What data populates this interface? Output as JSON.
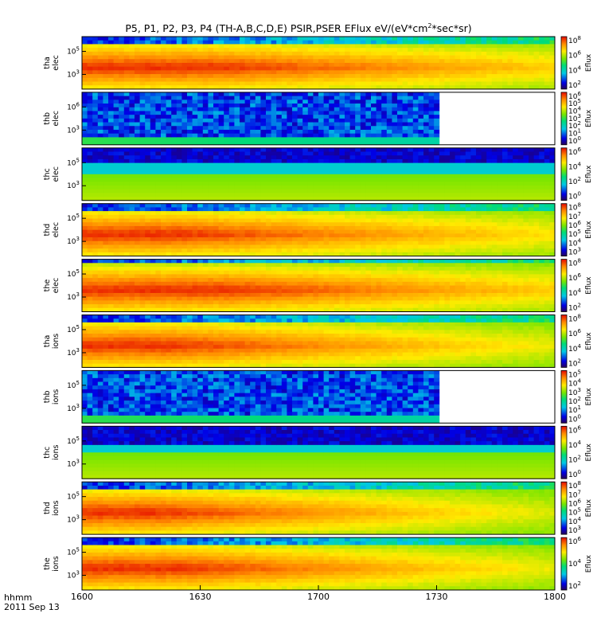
{
  "title": "P5, P1, P2, P3, P4 (TH-A,B,C,D,E) PSIR,PSER EFlux eV/(eV*cm",
  "title_sup": "2",
  "title_tail": "*sec*sr)",
  "bottom_labels": [
    "hhmm",
    "2011 Sep 13"
  ],
  "chart_data": {
    "type": "heatmap",
    "title": "P5, P1, P2, P3, P4 (TH-A,B,C,D,E) PSIR,PSER EFlux eV/(eV*cm^2*sec*sr)",
    "x_ticks": [
      "1600",
      "1630",
      "1700",
      "1730",
      "1800"
    ],
    "x_range": [
      "1600",
      "1800"
    ],
    "colorbar_label": "Eflux",
    "panels": [
      {
        "label": "tha elec",
        "yticks": [
          "10^5",
          "10^3"
        ],
        "cticks": [
          "10^8",
          "10^6",
          "10^4",
          "10^2"
        ],
        "peak_end": 0.28,
        "fade_end": 1.0,
        "top_band": 0.12,
        "gap_from": null
      },
      {
        "label": "thb elec",
        "yticks": [
          "10^6",
          "10^3"
        ],
        "cticks": [
          "10^6",
          "10^5",
          "10^4",
          "10^3",
          "10^2",
          "10^1",
          "10^0"
        ],
        "peak_end": 0.0,
        "fade_end": 0.0,
        "top_band": 0.85,
        "gap_from": 0.75
      },
      {
        "label": "thc elec",
        "yticks": [
          "10^5",
          "10^3"
        ],
        "cticks": [
          "10^6",
          "10^4",
          "10^2",
          "10^0"
        ],
        "peak_end": 0.0,
        "fade_end": 0.0,
        "top_band": 0.25,
        "gap_from": null
      },
      {
        "label": "thd elec",
        "yticks": [
          "10^5",
          "10^3"
        ],
        "cticks": [
          "10^8",
          "10^7",
          "10^6",
          "10^5",
          "10^4",
          "10^3"
        ],
        "peak_end": 0.2,
        "fade_end": 0.9,
        "top_band": 0.1,
        "gap_from": null
      },
      {
        "label": "the elec",
        "yticks": [
          "10^5",
          "10^3"
        ],
        "cticks": [
          "10^8",
          "10^6",
          "10^4",
          "10^2"
        ],
        "peak_end": 0.3,
        "fade_end": 1.0,
        "top_band": 0.06,
        "gap_from": null
      },
      {
        "label": "tha ions",
        "yticks": [
          "10^5",
          "10^3"
        ],
        "cticks": [
          "10^8",
          "10^6",
          "10^4",
          "10^2"
        ],
        "peak_end": 0.18,
        "fade_end": 0.8,
        "top_band": 0.12,
        "gap_from": null
      },
      {
        "label": "thb ions",
        "yticks": [
          "10^5",
          "10^3"
        ],
        "cticks": [
          "10^5",
          "10^4",
          "10^3",
          "10^2",
          "10^1",
          "10^0"
        ],
        "peak_end": 0.0,
        "fade_end": 0.0,
        "top_band": 0.8,
        "gap_from": 0.75
      },
      {
        "label": "thc ions",
        "yticks": [
          "10^5",
          "10^3"
        ],
        "cticks": [
          "10^6",
          "10^4",
          "10^2",
          "10^0"
        ],
        "peak_end": 0.0,
        "fade_end": 0.0,
        "top_band": 0.3,
        "gap_from": null
      },
      {
        "label": "thd ions",
        "yticks": [
          "10^5",
          "10^3"
        ],
        "cticks": [
          "10^8",
          "10^7",
          "10^6",
          "10^5",
          "10^4",
          "10^3"
        ],
        "peak_end": 0.15,
        "fade_end": 0.75,
        "top_band": 0.1,
        "gap_from": null
      },
      {
        "label": "the ions",
        "yticks": [
          "10^5",
          "10^3"
        ],
        "cticks": [
          "10^6",
          "10^4",
          "10^2"
        ],
        "peak_end": 0.2,
        "fade_end": 0.8,
        "top_band": 0.12,
        "gap_from": null
      }
    ]
  }
}
